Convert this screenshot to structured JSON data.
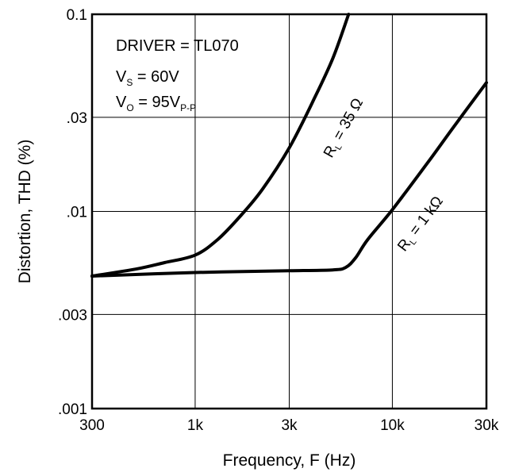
{
  "chart_data": {
    "type": "line",
    "title": "",
    "xlabel": "Frequency, F (Hz)",
    "ylabel": "Distortion, THD (%)",
    "xscale": "log",
    "yscale": "log",
    "xlim": [
      300,
      30000
    ],
    "ylim": [
      0.001,
      0.1
    ],
    "grid": true,
    "x_ticks": [
      300,
      1000,
      3000,
      10000,
      30000
    ],
    "x_tick_labels": [
      "300",
      "1k",
      "3k",
      "10k",
      "30k"
    ],
    "y_ticks": [
      0.001,
      0.003,
      0.01,
      0.03,
      0.1
    ],
    "y_tick_labels": [
      ".001",
      ".003",
      ".01",
      ".03",
      "0.1"
    ],
    "annotations": {
      "driver": "DRIVER = TL070",
      "vs_main": "V",
      "vs_sub": "S",
      "vs_value": " = 60V",
      "vo_main": "V",
      "vo_sub": "O",
      "vo_value": " = 95V",
      "vo_value_sub": "P-P"
    },
    "series": [
      {
        "name_main": "R",
        "name_sub": "L",
        "name_value": " = 35 Ω",
        "x": [
          300,
          500,
          700,
          1000,
          1300,
          1700,
          2200,
          3000,
          4000,
          5000,
          6000
        ],
        "y": [
          0.0047,
          0.0051,
          0.0055,
          0.006,
          0.0072,
          0.0095,
          0.013,
          0.021,
          0.037,
          0.06,
          0.1
        ]
      },
      {
        "name_main": "R",
        "name_sub": "L",
        "name_value": " = 1 kΩ",
        "x": [
          300,
          1000,
          3000,
          5000,
          5800,
          6500,
          7500,
          10000,
          15000,
          20000,
          30000
        ],
        "y": [
          0.0047,
          0.0049,
          0.005,
          0.00505,
          0.0052,
          0.0058,
          0.0072,
          0.0102,
          0.0175,
          0.026,
          0.045
        ]
      }
    ]
  }
}
